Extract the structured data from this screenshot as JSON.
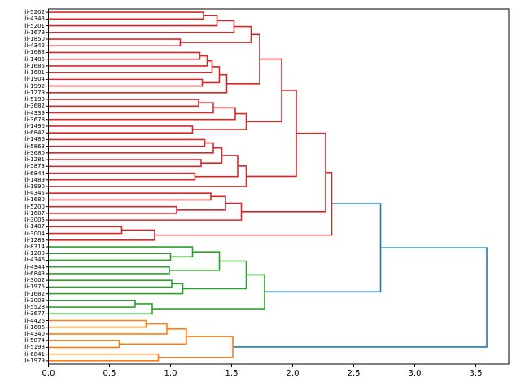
{
  "figure": {
    "background": "#ffffff"
  },
  "chart_data": {
    "type": "dendrogram",
    "orientation": "right (leaves on left, distance on x-axis)",
    "title": "",
    "xlabel": "",
    "ylabel": "",
    "xticks": [
      "0.0",
      "0.5",
      "1.0",
      "1.5",
      "2.0",
      "2.5",
      "3.0",
      "3.5"
    ],
    "xlim": [
      0,
      3.77
    ],
    "grid": false,
    "legend": null,
    "colors": {
      "C0": "#1f77b4",
      "C1": "#ff7f0e",
      "C2": "#2ca02c",
      "C3": "#d62728"
    },
    "cluster_colors": {
      "top": "C3",
      "middle": "C2",
      "bottom": "C1",
      "links_above_threshold": "C0"
    },
    "leaf_labels": [
      "jli-5202",
      "jli-4343",
      "jli-5201",
      "jli-1679",
      "jli-1850",
      "jli-4342",
      "jli-1683",
      "jli-1485",
      "jli-1685",
      "jli-1681",
      "jli-1904",
      "jli-1992",
      "jli-1279",
      "jli-5199",
      "jli-3682",
      "jli-4339",
      "jli-3678",
      "jli-1490",
      "jli-6842",
      "jli-1486",
      "jli-5868",
      "jli-3680",
      "jli-1281",
      "jli-5873",
      "jli-6844",
      "jli-1489",
      "jli-1990",
      "jli-4345",
      "jli-1680",
      "jli-5200",
      "jli-1687",
      "jli-3005",
      "jli-1487",
      "jli-3004",
      "jli-1283",
      "jli-8314",
      "jli-1280",
      "jli-4346",
      "jli-4344",
      "jli-6843",
      "jli-3002",
      "jli-1975",
      "jli-1682",
      "jli-3003",
      "jli-5528",
      "jli-3677",
      "jli-4426",
      "jli-1686",
      "jli-4340",
      "jli-5874",
      "jli-5198",
      "jli-6841",
      "jli-1979"
    ],
    "tree": {
      "d": 3.59,
      "c": "C0",
      "ch": [
        {
          "d": 2.72,
          "c": "C0",
          "ch": [
            {
              "d": 2.32,
              "c": "C3",
              "ch": [
                {
                  "d": 2.27,
                  "c": "C3",
                  "ch": [
                    {
                      "d": 2.03,
                      "c": "C3",
                      "ch": [
                        {
                          "d": 1.91,
                          "c": "C3",
                          "ch": [
                            {
                              "d": 1.73,
                              "c": "C3",
                              "ch": [
                                {
                                  "d": 1.66,
                                  "c": "C3",
                                  "ch": [
                                    {
                                      "d": 1.52,
                                      "c": "C3",
                                      "ch": [
                                        {
                                          "d": 1.38,
                                          "c": "C3",
                                          "ch": [
                                            {
                                              "d": 1.27,
                                              "c": "C3",
                                              "ch": [
                                                {
                                                  "leaf": 0
                                                },
                                                {
                                                  "leaf": 1
                                                }
                                              ]
                                            },
                                            {
                                              "leaf": 2
                                            }
                                          ]
                                        },
                                        {
                                          "leaf": 3
                                        }
                                      ]
                                    },
                                    {
                                      "d": 1.08,
                                      "c": "C3",
                                      "ch": [
                                        {
                                          "leaf": 4
                                        },
                                        {
                                          "leaf": 5
                                        }
                                      ]
                                    }
                                  ]
                                },
                                {
                                  "d": 1.46,
                                  "c": "C3",
                                  "ch": [
                                    {
                                      "d": 1.4,
                                      "c": "C3",
                                      "ch": [
                                        {
                                          "d": 1.34,
                                          "c": "C3",
                                          "ch": [
                                            {
                                              "d": 1.3,
                                              "c": "C3",
                                              "ch": [
                                                {
                                                  "d": 1.24,
                                                  "c": "C3",
                                                  "ch": [
                                                    {
                                                      "leaf": 6
                                                    },
                                                    {
                                                      "leaf": 7
                                                    }
                                                  ]
                                                },
                                                {
                                                  "leaf": 8
                                                }
                                              ]
                                            },
                                            {
                                              "leaf": 9
                                            }
                                          ]
                                        },
                                        {
                                          "d": 1.26,
                                          "c": "C3",
                                          "ch": [
                                            {
                                              "leaf": 10
                                            },
                                            {
                                              "leaf": 11
                                            }
                                          ]
                                        }
                                      ]
                                    },
                                    {
                                      "leaf": 12
                                    }
                                  ]
                                }
                              ]
                            },
                            {
                              "d": 1.62,
                              "c": "C3",
                              "ch": [
                                {
                                  "d": 1.53,
                                  "c": "C3",
                                  "ch": [
                                    {
                                      "d": 1.35,
                                      "c": "C3",
                                      "ch": [
                                        {
                                          "d": 1.23,
                                          "c": "C3",
                                          "ch": [
                                            {
                                              "leaf": 13
                                            },
                                            {
                                              "leaf": 14
                                            }
                                          ]
                                        },
                                        {
                                          "leaf": 15
                                        }
                                      ]
                                    },
                                    {
                                      "leaf": 16
                                    }
                                  ]
                                },
                                {
                                  "d": 1.18,
                                  "c": "C3",
                                  "ch": [
                                    {
                                      "leaf": 17
                                    },
                                    {
                                      "leaf": 18
                                    }
                                  ]
                                }
                              ]
                            }
                          ]
                        },
                        {
                          "d": 1.62,
                          "c": "C3",
                          "ch": [
                            {
                              "d": 1.55,
                              "c": "C3",
                              "ch": [
                                {
                                  "d": 1.42,
                                  "c": "C3",
                                  "ch": [
                                    {
                                      "d": 1.35,
                                      "c": "C3",
                                      "ch": [
                                        {
                                          "d": 1.28,
                                          "c": "C3",
                                          "ch": [
                                            {
                                              "leaf": 19
                                            },
                                            {
                                              "leaf": 20
                                            }
                                          ]
                                        },
                                        {
                                          "leaf": 21
                                        }
                                      ]
                                    },
                                    {
                                      "d": 1.25,
                                      "c": "C3",
                                      "ch": [
                                        {
                                          "leaf": 22
                                        },
                                        {
                                          "leaf": 23
                                        }
                                      ]
                                    }
                                  ]
                                },
                                {
                                  "d": 1.2,
                                  "c": "C3",
                                  "ch": [
                                    {
                                      "leaf": 24
                                    },
                                    {
                                      "leaf": 25
                                    }
                                  ]
                                }
                              ]
                            },
                            {
                              "leaf": 26
                            }
                          ]
                        }
                      ]
                    },
                    {
                      "d": 1.58,
                      "c": "C3",
                      "ch": [
                        {
                          "d": 1.45,
                          "c": "C3",
                          "ch": [
                            {
                              "d": 1.33,
                              "c": "C3",
                              "ch": [
                                {
                                  "leaf": 27
                                },
                                {
                                  "leaf": 28
                                }
                              ]
                            },
                            {
                              "d": 1.05,
                              "c": "C3",
                              "ch": [
                                {
                                  "leaf": 29
                                },
                                {
                                  "leaf": 30
                                }
                              ]
                            }
                          ]
                        },
                        {
                          "leaf": 31
                        }
                      ]
                    }
                  ]
                },
                {
                  "d": 0.87,
                  "c": "C3",
                  "ch": [
                    {
                      "d": 0.6,
                      "c": "C3",
                      "ch": [
                        {
                          "leaf": 32
                        },
                        {
                          "leaf": 33
                        }
                      ]
                    },
                    {
                      "leaf": 34
                    }
                  ]
                }
              ]
            },
            {
              "d": 1.77,
              "c": "C2",
              "ch": [
                {
                  "d": 1.62,
                  "c": "C2",
                  "ch": [
                    {
                      "d": 1.4,
                      "c": "C2",
                      "ch": [
                        {
                          "d": 1.18,
                          "c": "C2",
                          "ch": [
                            {
                              "leaf": 35
                            },
                            {
                              "d": 1.0,
                              "c": "C2",
                              "ch": [
                                {
                                  "leaf": 36
                                },
                                {
                                  "leaf": 37
                                }
                              ]
                            }
                          ]
                        },
                        {
                          "d": 0.99,
                          "c": "C2",
                          "ch": [
                            {
                              "leaf": 38
                            },
                            {
                              "leaf": 39
                            }
                          ]
                        }
                      ]
                    },
                    {
                      "d": 1.1,
                      "c": "C2",
                      "ch": [
                        {
                          "d": 1.01,
                          "c": "C2",
                          "ch": [
                            {
                              "leaf": 40
                            },
                            {
                              "leaf": 41
                            }
                          ]
                        },
                        {
                          "leaf": 42
                        }
                      ]
                    }
                  ]
                },
                {
                  "d": 0.85,
                  "c": "C2",
                  "ch": [
                    {
                      "d": 0.71,
                      "c": "C2",
                      "ch": [
                        {
                          "leaf": 43
                        },
                        {
                          "leaf": 44
                        }
                      ]
                    },
                    {
                      "leaf": 45
                    }
                  ]
                }
              ]
            }
          ]
        },
        {
          "d": 1.51,
          "c": "C1",
          "ch": [
            {
              "d": 1.13,
              "c": "C1",
              "ch": [
                {
                  "d": 0.97,
                  "c": "C1",
                  "ch": [
                    {
                      "d": 0.8,
                      "c": "C1",
                      "ch": [
                        {
                          "leaf": 46
                        },
                        {
                          "leaf": 47
                        }
                      ]
                    },
                    {
                      "leaf": 48
                    }
                  ]
                },
                {
                  "d": 0.58,
                  "c": "C1",
                  "ch": [
                    {
                      "leaf": 49
                    },
                    {
                      "leaf": 50
                    }
                  ]
                }
              ]
            },
            {
              "d": 0.9,
              "c": "C1",
              "ch": [
                {
                  "leaf": 51
                },
                {
                  "leaf": 52
                }
              ]
            }
          ]
        }
      ]
    }
  }
}
